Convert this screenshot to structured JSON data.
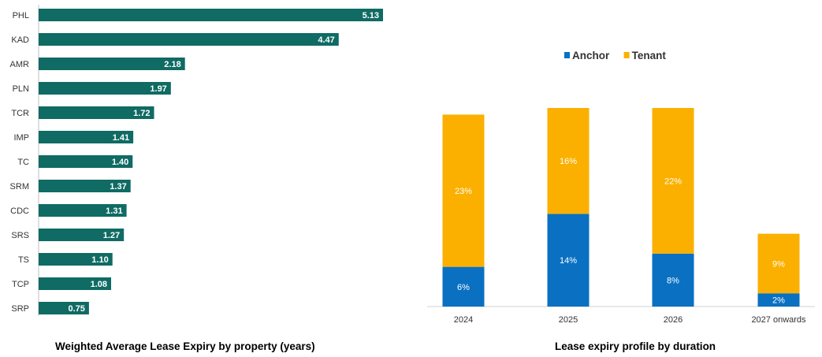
{
  "chart_data": [
    {
      "type": "bar",
      "orientation": "horizontal",
      "title": "Weighted Average Lease Expiry by property (years)",
      "categories": [
        "PHL",
        "KAD",
        "AMR",
        "PLN",
        "TCR",
        "IMP",
        "TC",
        "SRM",
        "CDC",
        "SRS",
        "TS",
        "TCP",
        "SRP"
      ],
      "values": [
        5.13,
        4.47,
        2.18,
        1.97,
        1.72,
        1.41,
        1.4,
        1.37,
        1.31,
        1.27,
        1.1,
        1.08,
        0.75
      ],
      "value_labels": [
        "5.13",
        "4.47",
        "2.18",
        "1.97",
        "1.72",
        "1.41",
        "1.40",
        "1.37",
        "1.31",
        "1.27",
        "1.10",
        "1.08",
        "0.75"
      ],
      "bar_color": "#0f6b63",
      "label_color": "#ffffff",
      "grid": false
    },
    {
      "type": "bar",
      "stacked": true,
      "title": "Lease expiry profile by duration",
      "categories": [
        "2024",
        "2025",
        "2026",
        "2027 onwards"
      ],
      "series": [
        {
          "name": "Anchor",
          "values": [
            6,
            14,
            8,
            2
          ],
          "labels": [
            "6%",
            "14%",
            "8%",
            "2%"
          ],
          "color": "#0a70c2"
        },
        {
          "name": "Tenant",
          "values": [
            23,
            16,
            22,
            9
          ],
          "labels": [
            "23%",
            "16%",
            "22%",
            "9%"
          ],
          "color": "#fbb000"
        }
      ],
      "unit": "%",
      "legend": "top-center",
      "grid": false
    }
  ]
}
